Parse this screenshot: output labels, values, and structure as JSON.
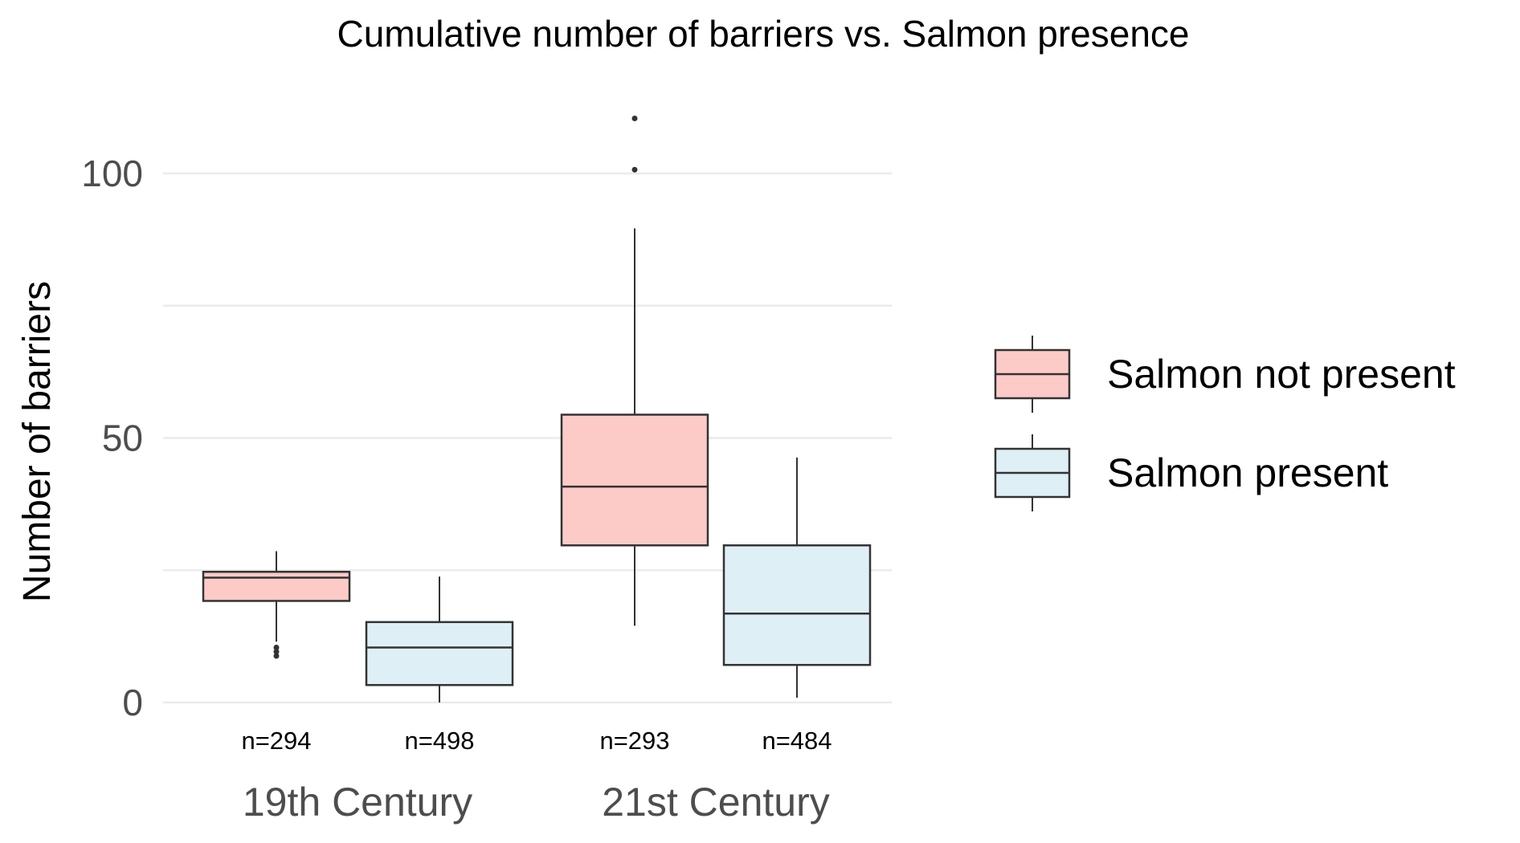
{
  "chart_data": {
    "type": "box",
    "title": "Cumulative number of barriers vs. Salmon presence",
    "xlabel": "",
    "ylabel": "Number of barriers",
    "ylim": [
      -3,
      112
    ],
    "yticks": [
      0,
      50,
      100
    ],
    "minor_gridlines": [
      25,
      75
    ],
    "grid": true,
    "legend_position": "right",
    "categories": [
      "19th Century",
      "21st Century"
    ],
    "series": [
      {
        "name": "Salmon not present",
        "color": "#FCCBC7"
      },
      {
        "name": "Salmon present",
        "color": "#DEEFF5"
      }
    ],
    "boxes": [
      {
        "category": "19th Century",
        "series": "Salmon not present",
        "n_label": "n=294",
        "lower_whisker": 11.5,
        "q1": 19.2,
        "median": 23.6,
        "q3": 24.7,
        "upper_whisker": 28.6,
        "outliers": [
          10.4,
          9.6,
          8.8
        ]
      },
      {
        "category": "19th Century",
        "series": "Salmon present",
        "n_label": "n=498",
        "lower_whisker": 0,
        "q1": 3.3,
        "median": 10.4,
        "q3": 15.2,
        "upper_whisker": 23.8,
        "outliers": []
      },
      {
        "category": "21st Century",
        "series": "Salmon not present",
        "n_label": "n=293",
        "lower_whisker": 14.5,
        "q1": 29.7,
        "median": 40.8,
        "q3": 54.4,
        "upper_whisker": 89.6,
        "outliers": [
          100.7,
          110.4
        ]
      },
      {
        "category": "21st Century",
        "series": "Salmon present",
        "n_label": "n=484",
        "lower_whisker": 0.9,
        "q1": 7.1,
        "median": 16.8,
        "q3": 29.7,
        "upper_whisker": 46.3,
        "outliers": []
      }
    ]
  }
}
